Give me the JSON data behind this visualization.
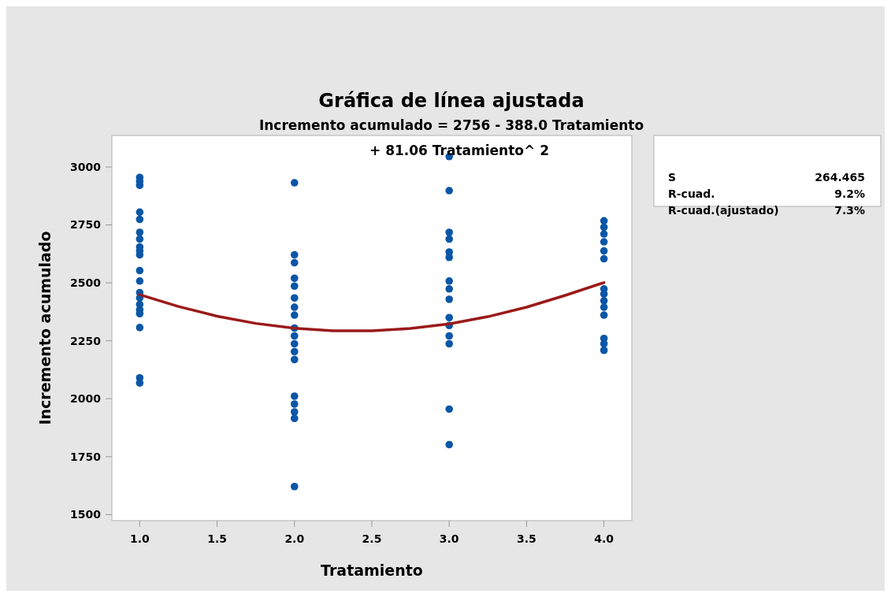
{
  "chart_data": {
    "type": "scatter",
    "title": "Gráfica de línea ajustada",
    "subtitle": "Incremento acumulado = 2756 - 388.0 Tratamiento + 81.06 Tratamiento^ 2",
    "xlabel": "Tratamiento",
    "ylabel": "Incremento acumulado",
    "xlim": [
      0.82,
      4.18
    ],
    "ylim": [
      1474,
      3136
    ],
    "xticks": [
      {
        "value": 1,
        "label": "1.0"
      },
      {
        "value": 1.5,
        "label": "1.5"
      },
      {
        "value": 2,
        "label": "2.0"
      },
      {
        "value": 2.5,
        "label": "2.5"
      },
      {
        "value": 3,
        "label": "3.0"
      },
      {
        "value": 3.5,
        "label": "3.5"
      },
      {
        "value": 4,
        "label": "4.0"
      }
    ],
    "yticks": [
      1500,
      1750,
      2000,
      2250,
      2500,
      2750,
      3000
    ],
    "grid": false,
    "marker": "circle",
    "annotations": [
      "S",
      "264.465",
      "R-cuad.",
      "9.2%",
      "R-cuad.(ajustado)",
      "7.3%"
    ],
    "series": [
      {
        "color": "#0a56a6",
        "x": [
          1,
          1,
          1,
          1,
          1,
          1,
          1,
          1,
          1,
          1,
          1,
          1,
          1,
          1,
          1,
          1,
          1,
          1,
          1,
          1,
          2,
          2,
          2,
          2,
          2,
          2,
          2,
          2,
          2,
          2,
          2,
          2,
          2,
          2,
          2,
          2,
          2,
          2,
          3,
          3,
          3,
          3,
          3,
          3,
          3,
          3,
          3,
          3,
          3,
          3,
          3,
          3,
          3,
          4,
          4,
          4,
          4,
          4,
          4,
          4,
          4,
          4,
          4,
          4,
          4,
          4,
          4
        ],
        "values": [
          2955,
          2938,
          2921,
          2805,
          2774,
          2718,
          2689,
          2655,
          2638,
          2621,
          2553,
          2508,
          2458,
          2435,
          2407,
          2384,
          2367,
          2307,
          2090,
          2068,
          2932,
          2621,
          2587,
          2520,
          2486,
          2435,
          2395,
          2361,
          2305,
          2271,
          2237,
          2203,
          2169,
          2011,
          1977,
          1943,
          1915,
          1621,
          3045,
          2898,
          2718,
          2689,
          2633,
          2610,
          2508,
          2474,
          2429,
          2350,
          2316,
          2271,
          2237,
          1955,
          1802,
          2768,
          2740,
          2711,
          2677,
          2638,
          2604,
          2474,
          2452,
          2423,
          2395,
          2361,
          2260,
          2237,
          2209
        ]
      },
      {
        "type": "line",
        "color": "#9b1a1a",
        "marker": "none",
        "line_style": "solid",
        "x": [
          1,
          1.25,
          1.5,
          1.75,
          2,
          2.25,
          2.5,
          2.75,
          3,
          3.25,
          3.5,
          3.75,
          4
        ],
        "values": [
          2449,
          2398,
          2356,
          2325,
          2304,
          2293,
          2293,
          2303,
          2323,
          2354,
          2395,
          2446,
          2501
        ]
      }
    ]
  }
}
